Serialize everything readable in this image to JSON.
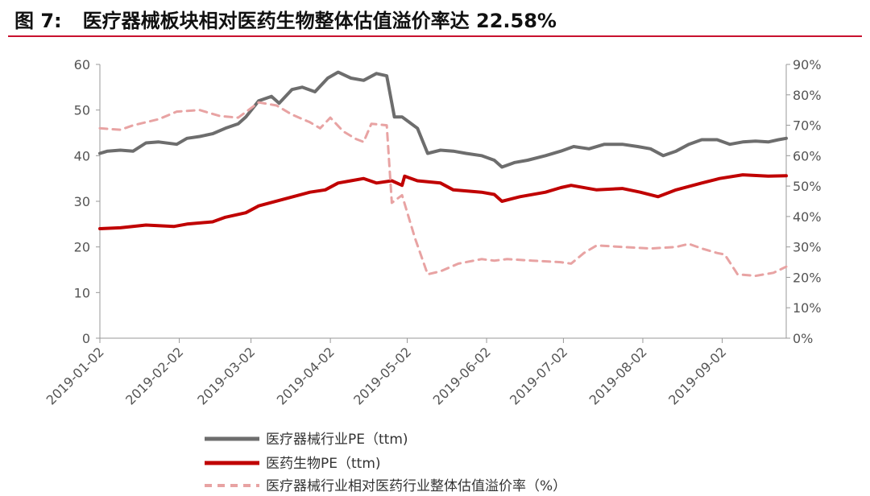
{
  "figure": {
    "number": "图 7:",
    "title": "医疗器械板块相对医药生物整体估值溢价率达 22.58%"
  },
  "colors": {
    "title_rule": "#c8102e",
    "series_device": "#6d6d6d",
    "series_pharma": "#c00000",
    "series_premium": "#e8a3a3",
    "axis": "#999999",
    "tick_text": "#555555"
  },
  "chart_data": {
    "type": "line",
    "x_ticks": [
      "2019-01-02",
      "2019-02-02",
      "2019-03-02",
      "2019-04-02",
      "2019-05-02",
      "2019-06-02",
      "2019-07-02",
      "2019-08-02",
      "2019-09-02"
    ],
    "x_range": [
      "2019-01-02",
      "2019-09-27"
    ],
    "y_left": {
      "range": [
        0,
        60
      ],
      "ticks": [
        "0",
        "10",
        "20",
        "30",
        "40",
        "50",
        "60"
      ]
    },
    "y_right": {
      "range": [
        0,
        90
      ],
      "ticks": [
        "0%",
        "10%",
        "20%",
        "30%",
        "40%",
        "50%",
        "60%",
        "70%",
        "80%",
        "90%"
      ]
    },
    "grid": false,
    "legend_position": "bottom",
    "series": [
      {
        "name": "医疗器械行业PE（ttm)",
        "axis": "left",
        "style": "solid",
        "points": [
          [
            "2019-01-02",
            40.5
          ],
          [
            "2019-01-05",
            41.0
          ],
          [
            "2019-01-10",
            41.2
          ],
          [
            "2019-01-15",
            41.0
          ],
          [
            "2019-01-20",
            42.8
          ],
          [
            "2019-01-25",
            43.0
          ],
          [
            "2019-02-01",
            42.5
          ],
          [
            "2019-02-05",
            43.8
          ],
          [
            "2019-02-10",
            44.2
          ],
          [
            "2019-02-15",
            44.8
          ],
          [
            "2019-02-20",
            46.0
          ],
          [
            "2019-02-25",
            47.0
          ],
          [
            "2019-02-28",
            48.5
          ],
          [
            "2019-03-05",
            52.0
          ],
          [
            "2019-03-10",
            53.0
          ],
          [
            "2019-03-13",
            51.5
          ],
          [
            "2019-03-18",
            54.5
          ],
          [
            "2019-03-22",
            55.0
          ],
          [
            "2019-03-27",
            54.0
          ],
          [
            "2019-04-01",
            57.0
          ],
          [
            "2019-04-05",
            58.3
          ],
          [
            "2019-04-10",
            57.0
          ],
          [
            "2019-04-15",
            56.5
          ],
          [
            "2019-04-20",
            58.0
          ],
          [
            "2019-04-24",
            57.5
          ],
          [
            "2019-04-27",
            48.5
          ],
          [
            "2019-04-30",
            48.5
          ],
          [
            "2019-05-06",
            46.0
          ],
          [
            "2019-05-10",
            40.5
          ],
          [
            "2019-05-15",
            41.2
          ],
          [
            "2019-05-20",
            41.0
          ],
          [
            "2019-05-25",
            40.5
          ],
          [
            "2019-05-31",
            40.0
          ],
          [
            "2019-06-05",
            39.0
          ],
          [
            "2019-06-08",
            37.5
          ],
          [
            "2019-06-13",
            38.5
          ],
          [
            "2019-06-18",
            39.0
          ],
          [
            "2019-06-25",
            40.0
          ],
          [
            "2019-07-01",
            41.0
          ],
          [
            "2019-07-06",
            42.0
          ],
          [
            "2019-07-12",
            41.5
          ],
          [
            "2019-07-18",
            42.5
          ],
          [
            "2019-07-25",
            42.5
          ],
          [
            "2019-07-31",
            42.0
          ],
          [
            "2019-08-05",
            41.5
          ],
          [
            "2019-08-10",
            40.0
          ],
          [
            "2019-08-15",
            41.0
          ],
          [
            "2019-08-20",
            42.5
          ],
          [
            "2019-08-25",
            43.5
          ],
          [
            "2019-08-31",
            43.5
          ],
          [
            "2019-09-05",
            42.5
          ],
          [
            "2019-09-10",
            43.0
          ],
          [
            "2019-09-15",
            43.2
          ],
          [
            "2019-09-20",
            43.0
          ],
          [
            "2019-09-24",
            43.5
          ],
          [
            "2019-09-27",
            43.8
          ]
        ]
      },
      {
        "name": "医药生物PE（ttm)",
        "axis": "left",
        "style": "solid",
        "points": [
          [
            "2019-01-02",
            24.0
          ],
          [
            "2019-01-10",
            24.2
          ],
          [
            "2019-01-20",
            24.8
          ],
          [
            "2019-01-31",
            24.5
          ],
          [
            "2019-02-05",
            25.0
          ],
          [
            "2019-02-15",
            25.5
          ],
          [
            "2019-02-20",
            26.5
          ],
          [
            "2019-02-28",
            27.5
          ],
          [
            "2019-03-05",
            29.0
          ],
          [
            "2019-03-15",
            30.5
          ],
          [
            "2019-03-25",
            32.0
          ],
          [
            "2019-03-31",
            32.5
          ],
          [
            "2019-04-05",
            34.0
          ],
          [
            "2019-04-10",
            34.5
          ],
          [
            "2019-04-15",
            35.0
          ],
          [
            "2019-04-20",
            34.0
          ],
          [
            "2019-04-26",
            34.5
          ],
          [
            "2019-04-30",
            33.5
          ],
          [
            "2019-05-01",
            35.5
          ],
          [
            "2019-05-06",
            34.5
          ],
          [
            "2019-05-15",
            34.0
          ],
          [
            "2019-05-20",
            32.5
          ],
          [
            "2019-05-31",
            32.0
          ],
          [
            "2019-06-05",
            31.5
          ],
          [
            "2019-06-08",
            30.0
          ],
          [
            "2019-06-15",
            31.0
          ],
          [
            "2019-06-25",
            32.0
          ],
          [
            "2019-07-01",
            33.0
          ],
          [
            "2019-07-05",
            33.5
          ],
          [
            "2019-07-15",
            32.5
          ],
          [
            "2019-07-25",
            32.8
          ],
          [
            "2019-08-01",
            32.0
          ],
          [
            "2019-08-08",
            31.0
          ],
          [
            "2019-08-15",
            32.5
          ],
          [
            "2019-08-25",
            34.0
          ],
          [
            "2019-09-01",
            35.0
          ],
          [
            "2019-09-10",
            35.8
          ],
          [
            "2019-09-20",
            35.5
          ],
          [
            "2019-09-27",
            35.6
          ]
        ]
      },
      {
        "name": "医疗器械行业相对医药行业整体估值溢价率（%）",
        "axis": "right",
        "style": "dashed",
        "points": [
          [
            "2019-01-02",
            69.0
          ],
          [
            "2019-01-10",
            68.5
          ],
          [
            "2019-01-15",
            70.0
          ],
          [
            "2019-01-25",
            72.0
          ],
          [
            "2019-02-01",
            74.5
          ],
          [
            "2019-02-10",
            75.0
          ],
          [
            "2019-02-18",
            73.0
          ],
          [
            "2019-02-25",
            72.5
          ],
          [
            "2019-03-01",
            75.0
          ],
          [
            "2019-03-05",
            77.5
          ],
          [
            "2019-03-12",
            76.5
          ],
          [
            "2019-03-18",
            73.5
          ],
          [
            "2019-03-25",
            71.0
          ],
          [
            "2019-03-29",
            69.0
          ],
          [
            "2019-04-02",
            72.5
          ],
          [
            "2019-04-07",
            68.0
          ],
          [
            "2019-04-12",
            65.5
          ],
          [
            "2019-04-15",
            64.5
          ],
          [
            "2019-04-18",
            70.5
          ],
          [
            "2019-04-24",
            70.0
          ],
          [
            "2019-04-26",
            44.5
          ],
          [
            "2019-04-30",
            47.0
          ],
          [
            "2019-05-05",
            33.0
          ],
          [
            "2019-05-10",
            21.0
          ],
          [
            "2019-05-15",
            22.0
          ],
          [
            "2019-05-22",
            24.5
          ],
          [
            "2019-05-31",
            26.0
          ],
          [
            "2019-06-05",
            25.5
          ],
          [
            "2019-06-10",
            26.0
          ],
          [
            "2019-06-20",
            25.5
          ],
          [
            "2019-07-01",
            25.0
          ],
          [
            "2019-07-05",
            24.5
          ],
          [
            "2019-07-10",
            28.0
          ],
          [
            "2019-07-15",
            30.5
          ],
          [
            "2019-07-25",
            30.0
          ],
          [
            "2019-08-05",
            29.5
          ],
          [
            "2019-08-15",
            30.0
          ],
          [
            "2019-08-20",
            31.0
          ],
          [
            "2019-08-25",
            29.5
          ],
          [
            "2019-08-31",
            28.0
          ],
          [
            "2019-09-03",
            27.5
          ],
          [
            "2019-09-08",
            21.0
          ],
          [
            "2019-09-15",
            20.5
          ],
          [
            "2019-09-22",
            21.5
          ],
          [
            "2019-09-27",
            23.5
          ]
        ]
      }
    ]
  }
}
